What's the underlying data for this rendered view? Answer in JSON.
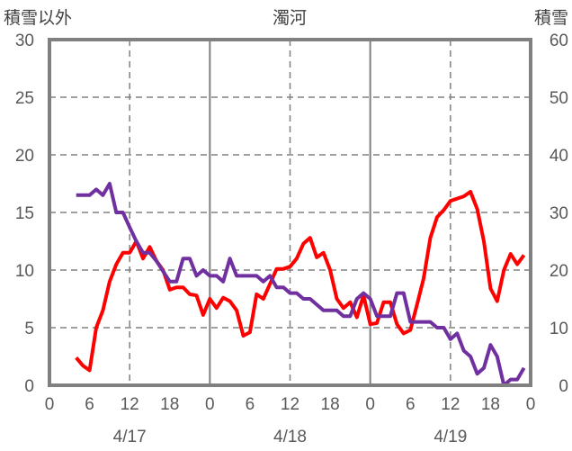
{
  "chart_data": {
    "type": "line",
    "title": "濁河",
    "ylabel_left": "積雪以外",
    "ylabel_right": "積雪",
    "ylim_left": [
      0,
      30
    ],
    "ylim_right": [
      0,
      60
    ],
    "yticks_left": [
      "0",
      "5",
      "10",
      "15",
      "20",
      "25",
      "30"
    ],
    "yticks_right": [
      "0",
      "10",
      "20",
      "30",
      "40",
      "50",
      "60"
    ],
    "xlim_hours": [
      0,
      72
    ],
    "xticks": [
      "0",
      "6",
      "12",
      "18",
      "0",
      "6",
      "12",
      "18",
      "0",
      "6",
      "12",
      "18",
      "0"
    ],
    "date_labels": [
      "4/17",
      "4/18",
      "4/19"
    ],
    "grid": true,
    "x_start_hour": 4,
    "series": [
      {
        "name": "積雪以外",
        "axis": "left",
        "color": "#FF0000",
        "values": [
          2.4,
          1.7,
          1.3,
          5,
          6.5,
          9,
          10.5,
          11.5,
          11.5,
          12.5,
          11,
          12,
          10.8,
          10,
          8.3,
          8.5,
          8.5,
          7.9,
          7.8,
          6.1,
          7.5,
          6.7,
          7.6,
          7.3,
          6.5,
          4.3,
          4.6,
          7.9,
          7.5,
          8.8,
          10.1,
          10.1,
          10.3,
          11,
          12.3,
          12.8,
          11.1,
          11.5,
          10,
          7.5,
          6.7,
          7.2,
          5.9,
          7.8,
          5.3,
          5.4,
          7.2,
          7.2,
          5.3,
          4.5,
          4.8,
          7,
          9.3,
          12.8,
          14.6,
          15.2,
          16,
          16.2,
          16.4,
          16.8,
          15.3,
          12.5,
          8.4,
          7.3,
          10,
          11.4,
          10.5,
          11.3
        ]
      },
      {
        "name": "積雪",
        "axis": "right",
        "color": "#7030A0",
        "values": [
          33,
          33,
          33,
          34,
          33,
          35,
          30,
          30,
          27.4,
          25,
          23,
          23,
          21.6,
          19.8,
          18,
          18,
          22,
          22,
          19,
          20,
          19,
          19,
          18,
          22,
          19,
          19,
          19,
          19,
          18,
          19,
          17,
          17,
          16,
          16,
          15,
          15,
          14,
          13,
          13,
          13,
          12,
          12,
          15,
          16,
          15,
          12,
          12,
          12,
          16,
          16,
          11,
          11,
          11,
          11,
          10,
          10,
          8,
          9,
          6,
          5,
          2,
          3,
          7,
          5,
          0,
          1,
          1,
          3
        ]
      }
    ]
  }
}
